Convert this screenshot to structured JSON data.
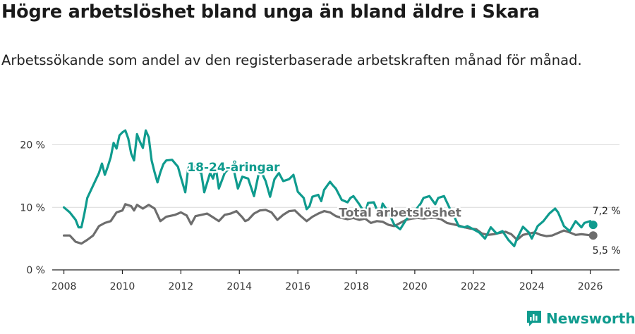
{
  "title": "Högre arbetslöshet bland unga än bland äldre i Skara",
  "subtitle": "Arbetssökande som andel av den registerbaserade arbetskraften månad för månad.",
  "brand": {
    "name": "Newsworthy",
    "icon": "newsworthy-logo-icon",
    "color": "#0f9b8e"
  },
  "chart_data": {
    "type": "line",
    "ylim": [
      0,
      24
    ],
    "xlim": [
      2007.6,
      2027.0
    ],
    "y_ticks": [
      {
        "v": 0,
        "label": "0 %"
      },
      {
        "v": 10,
        "label": "10 %"
      },
      {
        "v": 20,
        "label": "20 %"
      }
    ],
    "x_ticks": [
      {
        "v": 2008,
        "label": "2008"
      },
      {
        "v": 2010,
        "label": "2010"
      },
      {
        "v": 2012,
        "label": "2012"
      },
      {
        "v": 2014,
        "label": "2014"
      },
      {
        "v": 2016,
        "label": "2016"
      },
      {
        "v": 2018,
        "label": "2018"
      },
      {
        "v": 2020,
        "label": "2020"
      },
      {
        "v": 2022,
        "label": "2022"
      },
      {
        "v": 2024,
        "label": "2024"
      },
      {
        "v": 2026,
        "label": "2026"
      }
    ],
    "series": [
      {
        "name": "18-24-åringar",
        "color": "#0f9b8e",
        "last_label": "7,2 %",
        "x": [
          2008.0,
          2008.2,
          2008.4,
          2008.5,
          2008.6,
          2008.7,
          2008.8,
          2009.0,
          2009.2,
          2009.3,
          2009.4,
          2009.5,
          2009.6,
          2009.7,
          2009.8,
          2009.9,
          2010.0,
          2010.1,
          2010.2,
          2010.3,
          2010.4,
          2010.5,
          2010.6,
          2010.7,
          2010.8,
          2010.9,
          2011.0,
          2011.1,
          2011.2,
          2011.3,
          2011.4,
          2011.5,
          2011.7,
          2011.9,
          2012.0,
          2012.15,
          2012.25,
          2012.35,
          2012.5,
          2012.7,
          2012.8,
          2013.0,
          2013.1,
          2013.2,
          2013.3,
          2013.5,
          2013.6,
          2013.8,
          2013.95,
          2014.1,
          2014.3,
          2014.5,
          2014.6,
          2014.7,
          2014.9,
          2015.05,
          2015.2,
          2015.35,
          2015.5,
          2015.7,
          2015.85,
          2016.0,
          2016.2,
          2016.3,
          2016.4,
          2016.5,
          2016.7,
          2016.8,
          2016.9,
          2017.1,
          2017.2,
          2017.3,
          2017.5,
          2017.7,
          2017.8,
          2017.9,
          2018.1,
          2018.3,
          2018.4,
          2018.6,
          2018.8,
          2018.9,
          2019.1,
          2019.3,
          2019.5,
          2019.7,
          2019.9,
          2020.0,
          2020.2,
          2020.3,
          2020.5,
          2020.7,
          2020.8,
          2021.0,
          2021.2,
          2021.3,
          2021.5,
          2021.7,
          2021.8,
          2022.0,
          2022.2,
          2022.4,
          2022.6,
          2022.8,
          2023.0,
          2023.2,
          2023.4,
          2023.5,
          2023.7,
          2023.9,
          2024.0,
          2024.2,
          2024.4,
          2024.6,
          2024.8,
          2024.9,
          2025.1,
          2025.3,
          2025.5,
          2025.7,
          2025.8,
          2026.0,
          2026.1
        ],
        "values": [
          10.0,
          9.2,
          8.0,
          6.8,
          6.8,
          9.0,
          11.5,
          13.5,
          15.5,
          17.0,
          15.2,
          16.5,
          18.0,
          20.3,
          19.4,
          21.5,
          22.0,
          22.3,
          21.0,
          18.6,
          17.5,
          21.7,
          20.5,
          19.5,
          22.3,
          21.2,
          17.5,
          15.6,
          14.0,
          15.6,
          16.9,
          17.5,
          17.6,
          16.5,
          14.8,
          12.4,
          16.2,
          17.1,
          16.2,
          15.4,
          12.4,
          15.5,
          14.6,
          16.2,
          13.0,
          15.5,
          16.0,
          16.2,
          13.0,
          14.9,
          14.6,
          11.8,
          14.0,
          16.2,
          14.2,
          11.7,
          14.5,
          15.5,
          14.2,
          14.5,
          15.2,
          12.5,
          11.5,
          9.7,
          10.2,
          11.7,
          12.0,
          11.0,
          12.8,
          14.1,
          13.5,
          13.0,
          11.2,
          10.8,
          11.5,
          11.8,
          10.5,
          9.0,
          10.7,
          10.8,
          8.5,
          10.6,
          9.2,
          7.2,
          6.5,
          8.0,
          9.0,
          9.4,
          10.6,
          11.5,
          11.8,
          10.5,
          11.5,
          11.8,
          9.8,
          9.0,
          7.0,
          6.8,
          7.0,
          6.5,
          6.0,
          5.0,
          6.8,
          5.8,
          6.2,
          4.8,
          3.8,
          5.0,
          6.9,
          6.0,
          5.0,
          7.0,
          7.8,
          9.0,
          9.8,
          9.2,
          7.0,
          6.2,
          7.8,
          6.8,
          7.5,
          7.8,
          7.2
        ]
      },
      {
        "name": "Total arbetslöshet",
        "color": "#6d6d6d",
        "last_label": "5,5 %",
        "x": [
          2008.0,
          2008.2,
          2008.4,
          2008.6,
          2008.8,
          2009.0,
          2009.2,
          2009.4,
          2009.6,
          2009.8,
          2010.0,
          2010.1,
          2010.3,
          2010.4,
          2010.5,
          2010.7,
          2010.9,
          2011.1,
          2011.3,
          2011.5,
          2011.8,
          2012.0,
          2012.2,
          2012.35,
          2012.5,
          2012.7,
          2012.9,
          2013.1,
          2013.3,
          2013.5,
          2013.7,
          2013.9,
          2014.1,
          2014.2,
          2014.3,
          2014.5,
          2014.7,
          2014.9,
          2015.1,
          2015.3,
          2015.5,
          2015.7,
          2015.9,
          2016.1,
          2016.3,
          2016.5,
          2016.7,
          2016.9,
          2017.1,
          2017.3,
          2017.5,
          2017.7,
          2017.9,
          2018.1,
          2018.3,
          2018.5,
          2018.7,
          2018.9,
          2019.1,
          2019.3,
          2019.5,
          2019.7,
          2019.9,
          2020.1,
          2020.3,
          2020.5,
          2020.7,
          2020.9,
          2021.1,
          2021.3,
          2021.5,
          2021.7,
          2021.9,
          2022.1,
          2022.3,
          2022.5,
          2022.7,
          2022.9,
          2023.1,
          2023.3,
          2023.5,
          2023.7,
          2023.9,
          2024.1,
          2024.3,
          2024.5,
          2024.7,
          2024.9,
          2025.1,
          2025.3,
          2025.5,
          2025.7,
          2025.9,
          2026.1
        ],
        "values": [
          5.5,
          5.5,
          4.5,
          4.2,
          4.8,
          5.5,
          7.0,
          7.5,
          7.8,
          9.2,
          9.5,
          10.5,
          10.2,
          9.5,
          10.4,
          9.8,
          10.4,
          9.8,
          7.8,
          8.5,
          8.8,
          9.2,
          8.7,
          7.3,
          8.6,
          8.8,
          9.0,
          8.4,
          7.8,
          8.8,
          9.0,
          9.4,
          8.4,
          7.8,
          8.0,
          9.0,
          9.5,
          9.6,
          9.2,
          8.0,
          8.8,
          9.4,
          9.5,
          8.6,
          7.8,
          8.5,
          9.0,
          9.4,
          9.2,
          8.6,
          8.3,
          8.1,
          8.3,
          8.0,
          8.2,
          7.5,
          7.8,
          7.7,
          7.2,
          7.0,
          7.5,
          8.0,
          8.2,
          8.3,
          8.2,
          8.3,
          8.3,
          8.1,
          7.5,
          7.3,
          7.1,
          6.8,
          6.6,
          6.5,
          5.8,
          5.6,
          5.7,
          5.9,
          6.1,
          5.7,
          4.8,
          5.6,
          5.8,
          6.0,
          5.6,
          5.4,
          5.5,
          5.9,
          6.3,
          6.0,
          5.6,
          5.7,
          5.6,
          5.5
        ]
      }
    ],
    "annotations": [
      {
        "text": "18-24-åringar",
        "x": 2013.8,
        "y": 15.8,
        "series": 0
      },
      {
        "text": "Total arbetslöshet",
        "x": 2019.5,
        "y": 8.5,
        "series": 1
      }
    ]
  }
}
